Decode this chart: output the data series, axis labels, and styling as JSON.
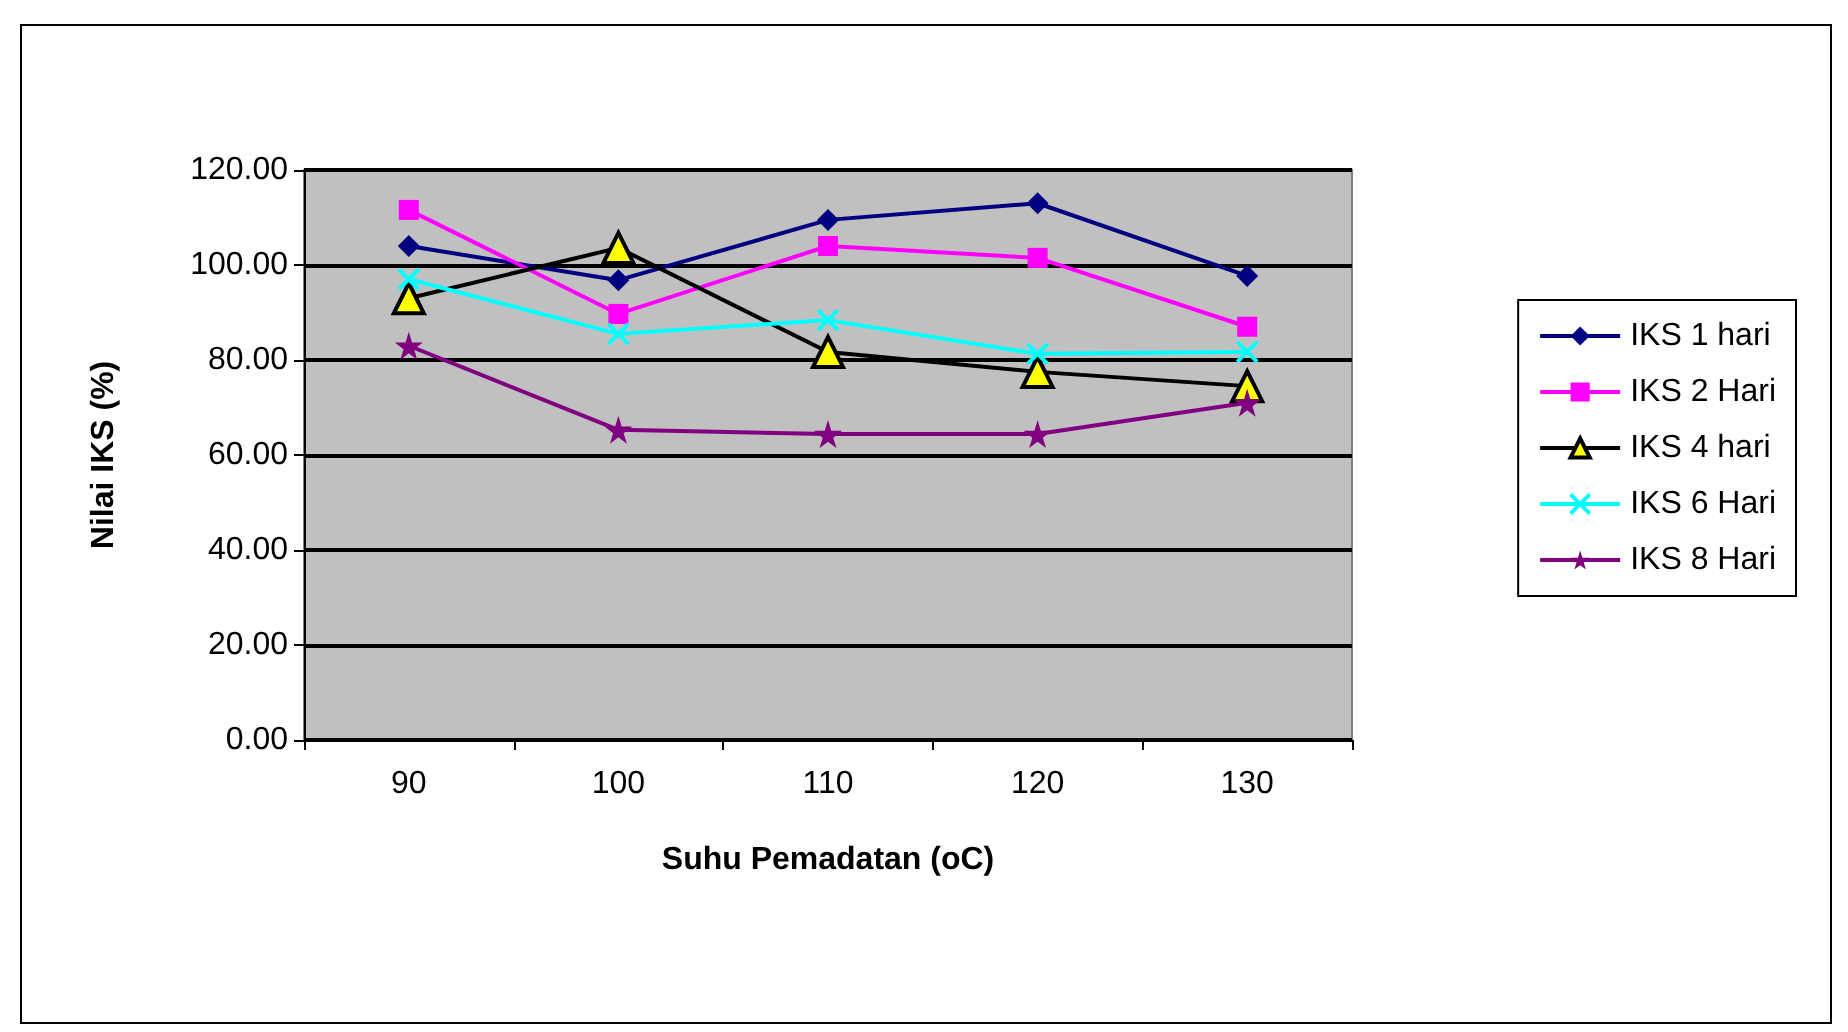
{
  "chart_data": {
    "type": "line",
    "xlabel": "Suhu Pemadatan (oC)",
    "ylabel": "Nilai IKS (%)",
    "categories": [
      "90",
      "100",
      "110",
      "120",
      "130"
    ],
    "series": [
      {
        "name": "IKS 1 hari",
        "color": "#000080",
        "marker": "diamond",
        "values": [
          104,
          96.8,
          109.5,
          113,
          97.7
        ]
      },
      {
        "name": "IKS 2 Hari",
        "color": "#ff00ff",
        "marker": "square",
        "values": [
          111.6,
          89.7,
          104,
          101.5,
          87
        ]
      },
      {
        "name": "IKS 4 hari",
        "color": "#000000",
        "marker": "triangle",
        "values": [
          93,
          103.6,
          81.7,
          77.5,
          74.5
        ]
      },
      {
        "name": "IKS 6 Hari",
        "color": "#00ffff",
        "marker": "cross",
        "values": [
          97,
          85.5,
          88.4,
          81.3,
          81.7
        ]
      },
      {
        "name": "IKS 8 Hari",
        "color": "#800080",
        "marker": "star",
        "values": [
          83,
          65.3,
          64.4,
          64.4,
          71
        ]
      }
    ],
    "ylim": [
      0,
      120
    ],
    "yticks": [
      {
        "value": 0,
        "label": "0.00"
      },
      {
        "value": 20,
        "label": "20.00"
      },
      {
        "value": 40,
        "label": "40.00"
      },
      {
        "value": 60,
        "label": "60.00"
      },
      {
        "value": 80,
        "label": "80.00"
      },
      {
        "value": 100,
        "label": "100.00"
      },
      {
        "value": 120,
        "label": "120.00"
      }
    ],
    "grid": "y",
    "legend": "right"
  }
}
